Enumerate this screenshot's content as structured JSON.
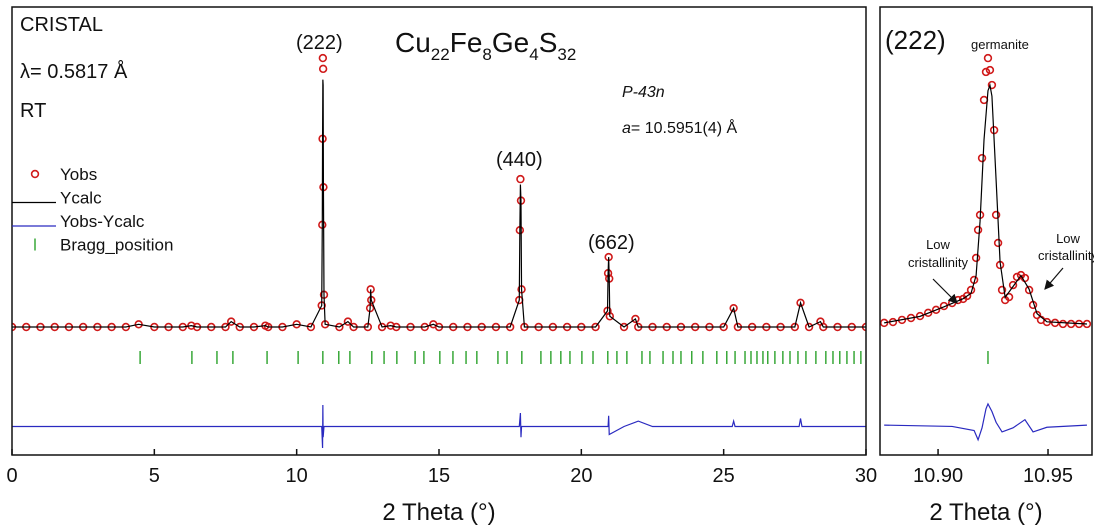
{
  "chart_data": [
    {
      "type": "scatter",
      "formula": [
        "Cu",
        "22",
        "Fe",
        "8",
        "Ge",
        "4",
        "S",
        "32"
      ],
      "annotations": {
        "instrument": "CRISTAL",
        "wavelength": "λ= 0.5817 Å",
        "temperature": "RT",
        "space_group": "P-43n",
        "lattice_symbol": "a",
        "lattice_value": "= 10.5951(4) Å"
      },
      "peak_labels": [
        "(222)",
        "(440)",
        "(662)"
      ],
      "x_label": "2 Theta (°)",
      "xlim": [
        0,
        30
      ],
      "xticks": [
        0,
        5,
        10,
        15,
        20,
        25,
        30
      ],
      "ylim": [
        -47.6,
        119
      ],
      "legend": "upper left",
      "series": [
        {
          "name": "Yobs",
          "style": "markers",
          "color": "#d01a1a",
          "x": [
            0,
            0.5,
            1,
            1.5,
            2,
            2.5,
            3,
            3.5,
            4,
            4.45,
            5,
            5.5,
            6,
            6.3,
            6.5,
            7,
            7.5,
            7.7,
            8,
            8.5,
            8.9,
            9,
            9.5,
            10,
            10.5,
            10.88,
            10.9,
            10.91,
            10.92,
            10.93,
            10.94,
            10.96,
            11,
            11.5,
            11.8,
            12,
            12.5,
            12.58,
            12.6,
            12.62,
            13,
            13.3,
            13.5,
            14,
            14.5,
            14.8,
            15,
            15.5,
            16,
            16.5,
            17,
            17.5,
            17.82,
            17.84,
            17.86,
            17.88,
            17.9,
            18,
            18.5,
            19,
            19.5,
            20,
            20.5,
            20.92,
            20.94,
            20.96,
            20.98,
            21,
            21.5,
            21.9,
            22,
            22.5,
            23,
            23.5,
            24,
            24.5,
            25,
            25.35,
            25.5,
            26,
            26.5,
            27,
            27.5,
            27.7,
            28,
            28.4,
            28.5,
            29,
            29.5,
            30
          ],
          "values": [
            0,
            0,
            0,
            0,
            0,
            0,
            0,
            0,
            0,
            1,
            0,
            0,
            0,
            0.5,
            0,
            0,
            0,
            2,
            0,
            0,
            0.5,
            0,
            0,
            1,
            0,
            8,
            38,
            70,
            100,
            96,
            52,
            12,
            1,
            0,
            2,
            0,
            0,
            7,
            14,
            10,
            0,
            0.5,
            0,
            0,
            0,
            1,
            0,
            0,
            0,
            0,
            0,
            0,
            10,
            36,
            55,
            47,
            14,
            0,
            0,
            0,
            0,
            0,
            0,
            6,
            20,
            26,
            18,
            4,
            0,
            3,
            0,
            0,
            0,
            0,
            0,
            0,
            0,
            7,
            0,
            0,
            0,
            0,
            0,
            9,
            0,
            2,
            0,
            0,
            0,
            0
          ]
        },
        {
          "name": "Ycalc",
          "style": "line",
          "color": "#000000",
          "x": [
            0,
            0.5,
            1,
            1.5,
            2,
            2.5,
            3,
            3.5,
            4,
            4.45,
            5,
            5.5,
            6,
            6.3,
            6.5,
            7,
            7.5,
            7.7,
            8,
            8.5,
            8.9,
            9,
            9.5,
            10,
            10.5,
            10.88,
            10.9,
            10.91,
            10.92,
            10.93,
            10.94,
            10.96,
            11,
            11.5,
            11.8,
            12,
            12.5,
            12.58,
            12.6,
            12.62,
            13,
            13.3,
            13.5,
            14,
            14.5,
            14.8,
            15,
            15.5,
            16,
            16.5,
            17,
            17.5,
            17.82,
            17.84,
            17.86,
            17.88,
            17.9,
            18,
            18.5,
            19,
            19.5,
            20,
            20.5,
            20.92,
            20.94,
            20.96,
            20.98,
            21,
            21.5,
            21.9,
            22,
            22.5,
            23,
            23.5,
            24,
            24.5,
            25,
            25.35,
            25.5,
            26,
            26.5,
            27,
            27.5,
            27.7,
            28,
            28.4,
            28.5,
            29,
            29.5,
            30
          ],
          "values": [
            0,
            0,
            0,
            0,
            0,
            0,
            0,
            0,
            0,
            1,
            0,
            0,
            0,
            0.5,
            0,
            0,
            0,
            2,
            0,
            0,
            0.5,
            0,
            0,
            1,
            0,
            8,
            38,
            70,
            92,
            90,
            52,
            12,
            1,
            0,
            2,
            0,
            0,
            7,
            14,
            10,
            0,
            0.5,
            0,
            0,
            0,
            1,
            0,
            0,
            0,
            0,
            0,
            0,
            10,
            36,
            53,
            47,
            14,
            0,
            0,
            0,
            0,
            0,
            0,
            6,
            20,
            26,
            18,
            4,
            0,
            3,
            0,
            0,
            0,
            0,
            0,
            0,
            0,
            7,
            0,
            0,
            0,
            0,
            0,
            9,
            0,
            2,
            0,
            0,
            0,
            0
          ]
        },
        {
          "name": "Yobs-Ycalc",
          "style": "line",
          "color": "#2a2ac0",
          "x": [
            0,
            10.88,
            10.91,
            10.92,
            10.93,
            10.96,
            17.82,
            17.86,
            17.88,
            17.9,
            20.94,
            20.96,
            20.98,
            21.5,
            22,
            22.5,
            25.3,
            25.35,
            25.4,
            27.65,
            27.7,
            27.75,
            30
          ],
          "values": [
            -37,
            -37,
            -45,
            -29,
            -41,
            -37,
            -37,
            -32,
            -41,
            -37,
            -37,
            -33,
            -40,
            -37,
            -35,
            -37,
            -37,
            -35,
            -37,
            -37,
            -34,
            -37,
            -37
          ]
        },
        {
          "name": "Bragg_position",
          "style": "ticks",
          "color": "#1a9a1a",
          "x": [
            4.5,
            6.32,
            7.2,
            7.76,
            8.96,
            10.05,
            10.92,
            11.48,
            11.87,
            12.64,
            13.07,
            13.52,
            14.16,
            14.47,
            15.03,
            15.49,
            15.95,
            16.33,
            17.07,
            17.39,
            17.91,
            18.58,
            18.93,
            19.28,
            19.6,
            20.02,
            20.41,
            20.93,
            21.25,
            21.6,
            22.13,
            22.41,
            22.87,
            23.22,
            23.5,
            23.88,
            24.27,
            24.76,
            25.11,
            25.4,
            25.75,
            25.96,
            26.17,
            26.38,
            26.55,
            26.8,
            27.08,
            27.33,
            27.61,
            27.89,
            28.24,
            28.59,
            28.84,
            29.08,
            29.33,
            29.58,
            29.82
          ]
        }
      ]
    },
    {
      "type": "scatter",
      "peak_label": "(222)",
      "phase": "germanite",
      "annotations": {
        "left": [
          "Low",
          "cristallinity"
        ],
        "right": [
          "Low",
          "cristallinity"
        ]
      },
      "x_label": "2 Theta (°)",
      "xlim": [
        10.8736,
        10.97
      ],
      "xticks": [
        {
          "value": 10.9,
          "label": "10.90"
        },
        10.95
      ],
      "ylim": [
        -46,
        118.8
      ],
      "series": [
        {
          "name": "Yobs",
          "style": "markers",
          "color": "#d01a1a",
          "x": [
            10.8755,
            10.8795,
            10.8836,
            10.8877,
            10.8918,
            10.8955,
            10.8991,
            10.9027,
            10.9064,
            10.9091,
            10.9114,
            10.9132,
            10.915,
            10.9164,
            10.9173,
            10.9182,
            10.9191,
            10.92,
            10.9209,
            10.9218,
            10.9227,
            10.9236,
            10.9245,
            10.9255,
            10.9264,
            10.9273,
            10.9282,
            10.9291,
            10.9305,
            10.9323,
            10.9341,
            10.9359,
            10.9377,
            10.9395,
            10.9414,
            10.9432,
            10.945,
            10.9468,
            10.9495,
            10.9532,
            10.9568,
            10.9605,
            10.9641,
            10.9677
          ],
          "values": [
            2.6,
            2.9,
            3.7,
            4.4,
            5.1,
            6.3,
            7.4,
            8.8,
            9.9,
            11,
            11.4,
            12.5,
            14.7,
            18.4,
            26.5,
            36.8,
            42.3,
            63.2,
            84.6,
            94.9,
            100,
            95.6,
            90.1,
            73.5,
            42.3,
            32,
            23.9,
            14.7,
            11,
            12.1,
            16.5,
            19.5,
            20.2,
            19.1,
            14.7,
            9.2,
            5.5,
            3.7,
            2.9,
            2.6,
            2.2,
            2.2,
            2.2,
            2.2
          ]
        },
        {
          "name": "Ycalc",
          "style": "line",
          "color": "#000000",
          "x": [
            10.8755,
            10.8918,
            10.9027,
            10.9114,
            10.915,
            10.9173,
            10.9191,
            10.9209,
            10.9227,
            10.9236,
            10.9245,
            10.9264,
            10.9282,
            10.9305,
            10.9341,
            10.9377,
            10.9414,
            10.945,
            10.9495,
            10.9677
          ],
          "values": [
            2.6,
            5,
            8.5,
            11.5,
            13.5,
            20,
            40,
            70,
            88,
            90,
            86,
            55,
            25,
            12,
            16,
            20,
            15,
            6,
            3,
            2.2
          ]
        },
        {
          "name": "Yobs-Ycalc",
          "style": "line",
          "color": "#2a2ac0",
          "x": [
            10.8755,
            10.9064,
            10.9164,
            10.9182,
            10.92,
            10.9218,
            10.9227,
            10.9245,
            10.9264,
            10.9291,
            10.9341,
            10.9395,
            10.9432,
            10.9495,
            10.9677
          ],
          "values": [
            -35,
            -35.5,
            -37,
            -40.4,
            -36,
            -29,
            -27.2,
            -30,
            -34,
            -37.5,
            -36,
            -33,
            -37.5,
            -35.8,
            -35
          ]
        },
        {
          "name": "Bragg_position",
          "style": "ticks",
          "color": "#1a9a1a",
          "x": [
            10.9227
          ]
        }
      ]
    }
  ]
}
